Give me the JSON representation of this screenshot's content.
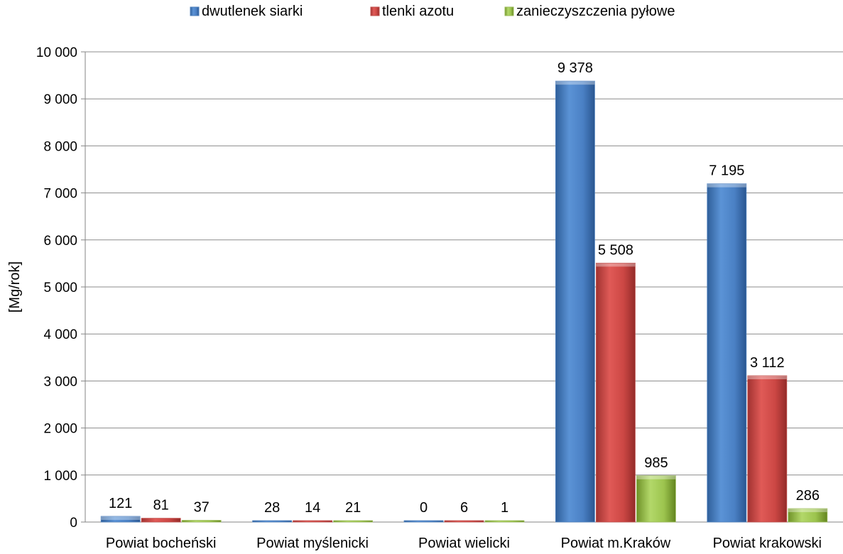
{
  "chart_data": {
    "type": "bar",
    "title": "",
    "xlabel": "",
    "ylabel": "[Mg/rok]",
    "ylim": [
      0,
      10000
    ],
    "yticks": [
      0,
      1000,
      2000,
      3000,
      4000,
      5000,
      6000,
      7000,
      8000,
      9000,
      10000
    ],
    "ytick_labels": [
      "0",
      "1 000",
      "2 000",
      "3 000",
      "4 000",
      "5 000",
      "6 000",
      "7 000",
      "8 000",
      "9 000",
      "10 000"
    ],
    "grid": true,
    "legend_position": "top",
    "categories": [
      "Powiat bocheński",
      "Powiat myślenicki",
      "Powiat wielicki",
      "Powiat m.Kraków",
      "Powiat krakowski"
    ],
    "series": [
      {
        "name": "dwutlenek siarki",
        "color": "#4f81bd",
        "values": [
          121,
          28,
          0,
          9378,
          7195
        ],
        "labels": [
          "121",
          "28",
          "0",
          "9 378",
          "7 195"
        ]
      },
      {
        "name": "tlenki azotu",
        "color": "#c0504d",
        "values": [
          81,
          14,
          6,
          5508,
          3112
        ],
        "labels": [
          "81",
          "14",
          "6",
          "5 508",
          "3 112"
        ]
      },
      {
        "name": "zanieczyszczenia pyłowe",
        "color": "#9bbb59",
        "values": [
          37,
          21,
          1,
          985,
          286
        ],
        "labels": [
          "37",
          "21",
          "1",
          "985",
          "286"
        ]
      }
    ]
  }
}
